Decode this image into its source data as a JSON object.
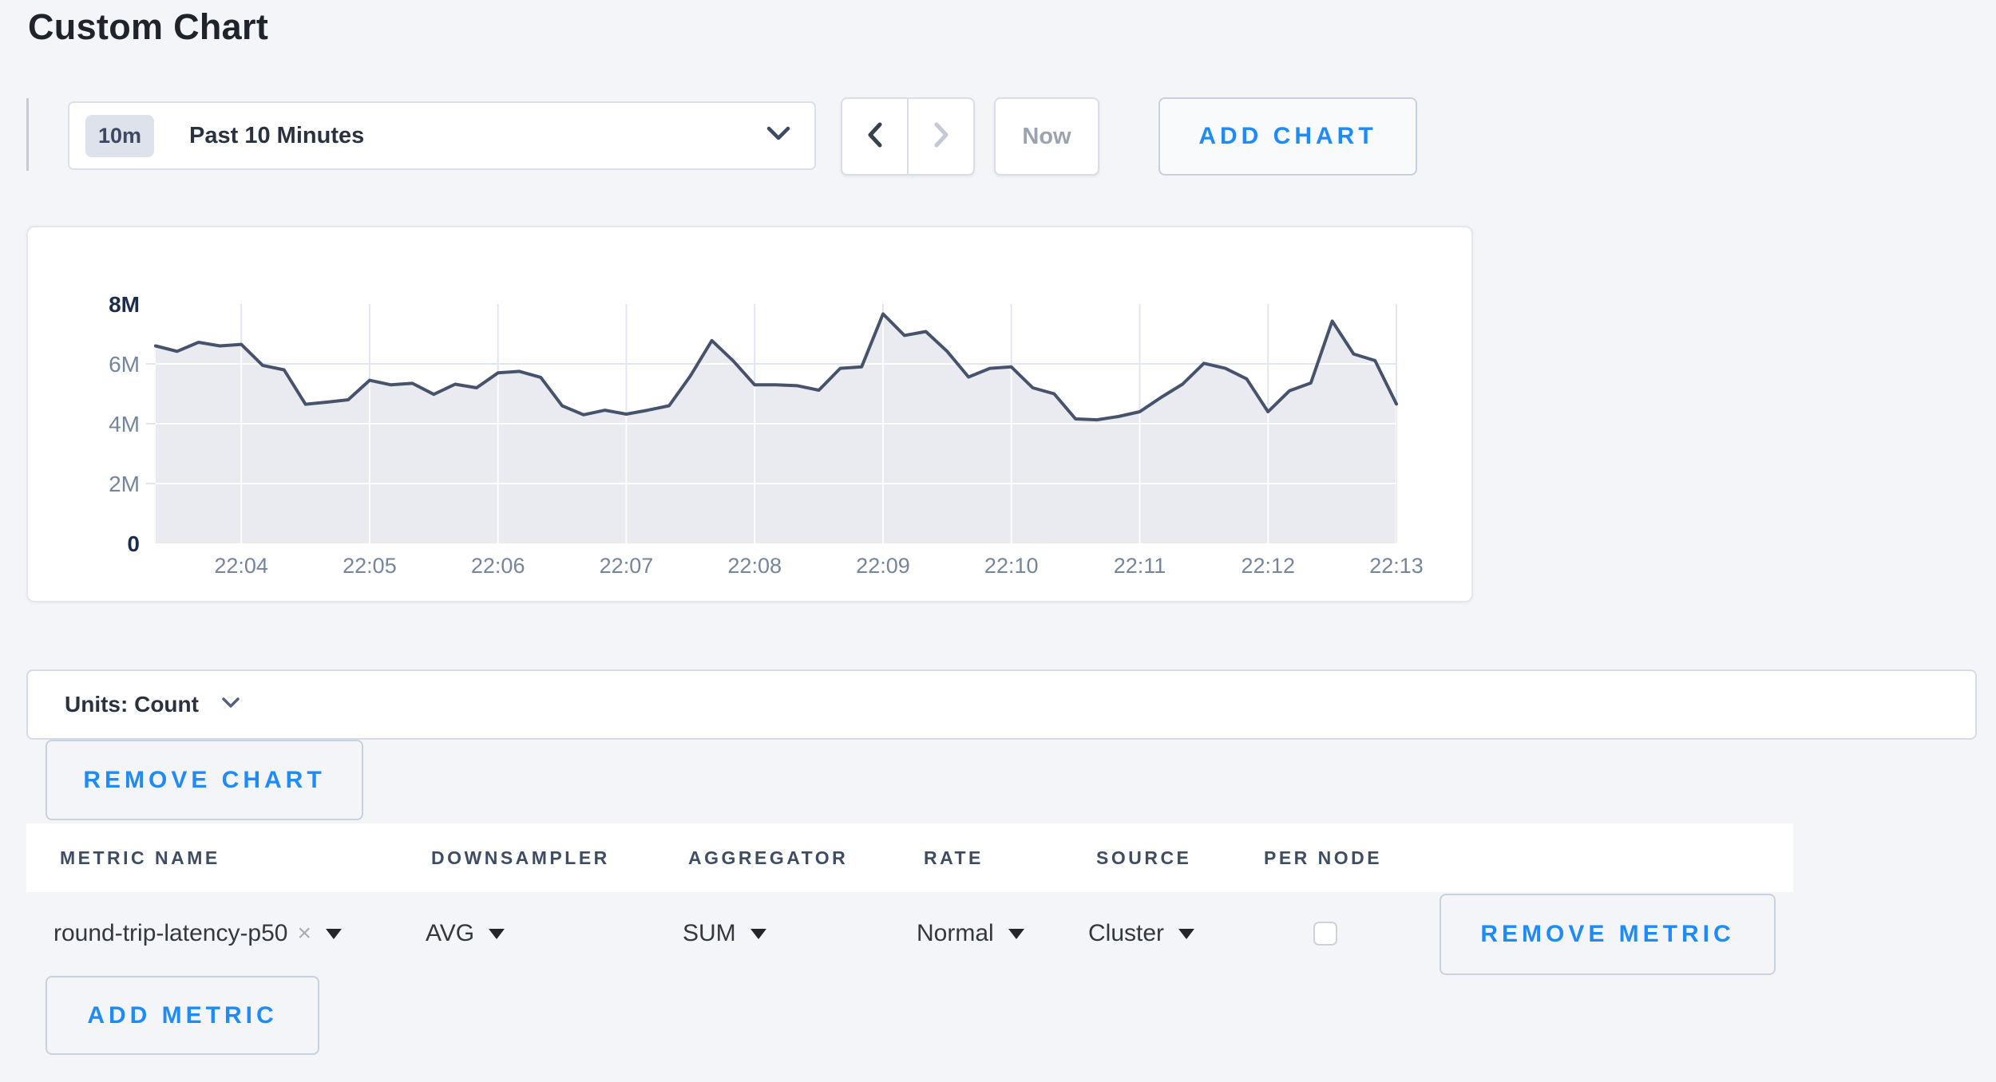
{
  "page": {
    "title": "Custom Chart"
  },
  "toolbar": {
    "time_range": {
      "badge": "10m",
      "label": "Past 10 Minutes"
    },
    "now_label": "Now",
    "add_chart_label": "ADD CHART"
  },
  "chart_data": {
    "type": "area",
    "title": "",
    "xlabel": "",
    "ylabel": "Count",
    "ylim_millions": [
      0,
      8
    ],
    "y_tick_labels": [
      "8M",
      "6M",
      "4M",
      "2M",
      "0"
    ],
    "x_tick_labels": [
      "22:04",
      "22:05",
      "22:06",
      "22:07",
      "22:08",
      "22:09",
      "22:10",
      "22:11",
      "22:12",
      "22:13"
    ],
    "x_tick_indices": [
      4,
      10,
      16,
      22,
      28,
      34,
      40,
      46,
      52,
      58
    ],
    "sample_interval_seconds": 10,
    "grid": true,
    "legend": "none",
    "line_color": "#47536d",
    "fill_color": "#e9ebf1",
    "values_millions": [
      6.6,
      6.42,
      6.72,
      6.6,
      6.65,
      5.95,
      5.8,
      4.65,
      4.72,
      4.8,
      5.45,
      5.3,
      5.35,
      4.98,
      5.32,
      5.2,
      5.7,
      5.75,
      5.55,
      4.6,
      4.3,
      4.45,
      4.32,
      4.45,
      4.6,
      5.6,
      6.78,
      6.1,
      5.3,
      5.3,
      5.27,
      5.12,
      5.85,
      5.9,
      7.67,
      6.95,
      7.08,
      6.42,
      5.56,
      5.85,
      5.9,
      5.2,
      5.0,
      4.16,
      4.13,
      4.24,
      4.4,
      4.88,
      5.32,
      6.02,
      5.85,
      5.5,
      4.4,
      5.1,
      5.36,
      7.43,
      6.33,
      6.11,
      4.66
    ]
  },
  "units_bar": {
    "label": "Units: Count"
  },
  "chart_actions": {
    "remove_chart": "REMOVE CHART"
  },
  "metrics_table": {
    "columns": [
      "METRIC NAME",
      "DOWNSAMPLER",
      "AGGREGATOR",
      "RATE",
      "SOURCE",
      "PER NODE"
    ],
    "rows": [
      {
        "metric_name": "round-trip-latency-p50",
        "clear_icon": "×",
        "downsampler": "AVG",
        "aggregator": "SUM",
        "rate": "Normal",
        "source": "Cluster",
        "per_node_checked": false,
        "remove_label": "REMOVE METRIC"
      }
    ],
    "add_metric": "ADD METRIC"
  },
  "colors": {
    "page_bg": "#f4f5f8",
    "accent_blue": "#1e8bf8",
    "line": "#47536d",
    "fill": "#e9ebf1",
    "grid": "#e2e6ee"
  }
}
